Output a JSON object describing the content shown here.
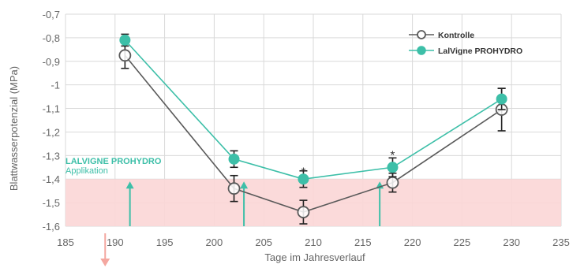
{
  "chart_data": {
    "type": "line",
    "title": "",
    "xlabel": "Tage im Jahresverlauf",
    "ylabel": "Blattwasserpotenzial (MPa)",
    "xlim": [
      185,
      235
    ],
    "ylim": [
      -1.6,
      -0.7
    ],
    "x_ticks": [
      185,
      190,
      195,
      200,
      205,
      210,
      215,
      220,
      225,
      230,
      235
    ],
    "x_tick_labels": [
      "185",
      "190",
      "195",
      "200",
      "205",
      "210",
      "215",
      "220",
      "225",
      "230",
      "235"
    ],
    "y_ticks": [
      -0.7,
      -0.8,
      -0.9,
      -1.0,
      -1.1,
      -1.2,
      -1.3,
      -1.4,
      -1.5,
      -1.6
    ],
    "y_tick_labels": [
      "-0,7",
      "-0,8",
      "-0,9",
      "-1",
      "-1,1",
      "-1,2",
      "-1,3",
      "-1,4",
      "-1,5",
      "-1,6"
    ],
    "grid": true,
    "legend_position": "top-right",
    "series": [
      {
        "name": "Kontrolle",
        "color": "#5a5a5a",
        "marker": "open-circle",
        "x": [
          191,
          202,
          209,
          218,
          229
        ],
        "y": [
          -0.875,
          -1.44,
          -1.54,
          -1.415,
          -1.105
        ],
        "err": [
          0.055,
          0.055,
          0.05,
          0.04,
          0.09
        ]
      },
      {
        "name": "LalVigne PROHYDRO",
        "color": "#3dbfa8",
        "marker": "filled-circle",
        "x": [
          191,
          202,
          209,
          218,
          229
        ],
        "y": [
          -0.81,
          -1.315,
          -1.4,
          -1.35,
          -1.06
        ],
        "err": [
          0.025,
          0.035,
          0.035,
          0.04,
          0.045
        ]
      }
    ],
    "stress_zone": {
      "from": -1.6,
      "to": -1.4,
      "color": "#fbd6d6"
    },
    "significance_markers": [
      {
        "x": 209,
        "y": -1.37,
        "label": "*"
      },
      {
        "x": 218,
        "y": -1.3,
        "label": "*"
      }
    ],
    "application_arrows": [
      {
        "x": 191.5,
        "color": "#3dbfa8"
      },
      {
        "x": 203,
        "color": "#3dbfa8"
      },
      {
        "x": 216.7,
        "color": "#3dbfa8"
      }
    ],
    "annotation": {
      "title": "LALVIGNE PROHYDRO",
      "subtitle": "Applikation",
      "color": "#3dbfa8"
    },
    "down_arrow": {
      "x": 189,
      "color": "#f4a7a0"
    }
  }
}
